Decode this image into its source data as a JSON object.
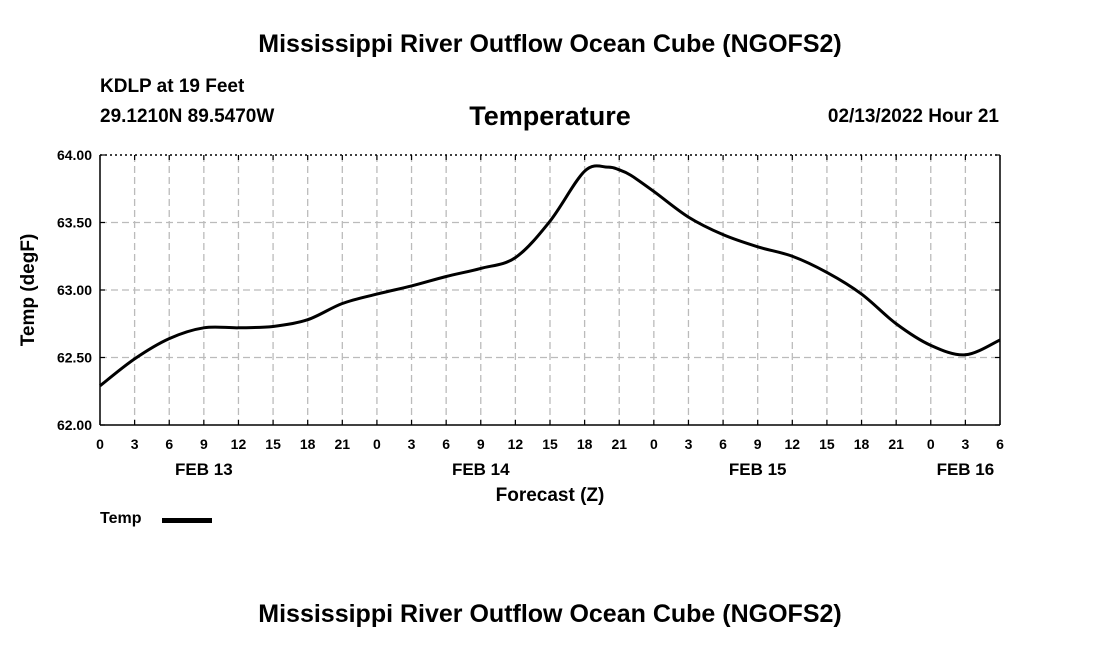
{
  "header": {
    "title": "Mississippi River Outflow Ocean Cube (NGOFS2)",
    "station": "KDLP at 19 Feet",
    "coordinates": "29.1210N  89.5470W",
    "chart_title": "Temperature",
    "datetime": "02/13/2022 Hour 21"
  },
  "footer": {
    "title": "Mississippi River Outflow Ocean Cube (NGOFS2)"
  },
  "legend": {
    "label": "Temp"
  },
  "chart_data": {
    "type": "line",
    "title": "Temperature",
    "xlabel": "Forecast (Z)",
    "ylabel": "Temp (degF)",
    "xlim": [
      0,
      78
    ],
    "ylim": [
      62.0,
      64.0
    ],
    "grid": true,
    "x_ticks": [
      0,
      3,
      6,
      9,
      12,
      15,
      18,
      21,
      24,
      27,
      30,
      33,
      36,
      39,
      42,
      45,
      48,
      51,
      54,
      57,
      60,
      63,
      66,
      69,
      72,
      75,
      78
    ],
    "x_tick_labels": [
      "0",
      "3",
      "6",
      "9",
      "12",
      "15",
      "18",
      "21",
      "0",
      "3",
      "6",
      "9",
      "12",
      "15",
      "18",
      "21",
      "0",
      "3",
      "6",
      "9",
      "12",
      "15",
      "18",
      "21",
      "0",
      "3",
      "6"
    ],
    "y_ticks": [
      62.0,
      62.5,
      63.0,
      63.5,
      64.0
    ],
    "y_tick_labels": [
      "62.00",
      "62.50",
      "63.00",
      "63.50",
      "64.00"
    ],
    "date_labels": [
      {
        "x": 9,
        "label": "FEB 13"
      },
      {
        "x": 33,
        "label": "FEB 14"
      },
      {
        "x": 57,
        "label": "FEB 15"
      },
      {
        "x": 75,
        "label": "FEB 16"
      }
    ],
    "series": [
      {
        "name": "Temp",
        "color": "#000000",
        "x": [
          0,
          3,
          6,
          9,
          12,
          15,
          18,
          21,
          24,
          27,
          30,
          33,
          36,
          39,
          42,
          44,
          45,
          46,
          48,
          51,
          54,
          57,
          60,
          63,
          66,
          69,
          72,
          75,
          78
        ],
        "values": [
          62.29,
          62.49,
          62.64,
          62.72,
          62.72,
          62.73,
          62.78,
          62.9,
          62.97,
          63.03,
          63.1,
          63.16,
          63.24,
          63.51,
          63.88,
          63.91,
          63.89,
          63.85,
          63.73,
          63.54,
          63.41,
          63.32,
          63.25,
          63.13,
          62.97,
          62.75,
          62.59,
          62.52,
          62.63
        ]
      }
    ]
  }
}
